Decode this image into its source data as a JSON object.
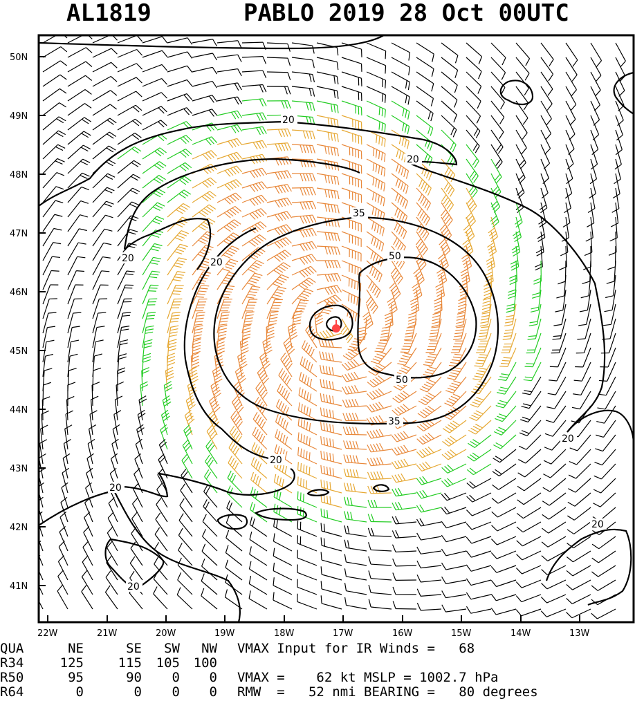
{
  "storm_id": "AL1819",
  "title": "PABLO 2019 28 Oct 00UTC",
  "colors": {
    "contour": "#000000",
    "barb_weak": "#000000",
    "barb_ts": "#22cc22",
    "barb_strong": "#e6a833",
    "barb_core": "#e8883a",
    "center_marker": "#ff4444"
  },
  "axes": {
    "lat_labels": [
      "50N",
      "49N",
      "48N",
      "47N",
      "46N",
      "45N",
      "44N",
      "43N",
      "42N",
      "41N"
    ],
    "lon_labels": [
      "22W",
      "21W",
      "20W",
      "19W",
      "18W",
      "17W",
      "16W",
      "15W",
      "14W",
      "13W"
    ]
  },
  "contour_labels": [
    "20",
    "20",
    "20",
    "20",
    "20",
    "20",
    "20",
    "20",
    "20",
    "35",
    "35",
    "50",
    "50"
  ],
  "table": {
    "header": [
      "QUA",
      "NE",
      "SE",
      "SW",
      "NW"
    ],
    "rows": [
      [
        "R34",
        "125",
        "115",
        "105",
        "100"
      ],
      [
        "R50",
        "95",
        "90",
        "0",
        "0"
      ],
      [
        "R64",
        "0",
        "0",
        "0",
        "0"
      ]
    ]
  },
  "info_lines": [
    "VMAX Input for IR Winds =   68",
    "",
    "VMAX =    62 kt MSLP = 1002.7 hPa",
    "RMW  =   52 nmi BEARING =   80 degrees"
  ]
}
